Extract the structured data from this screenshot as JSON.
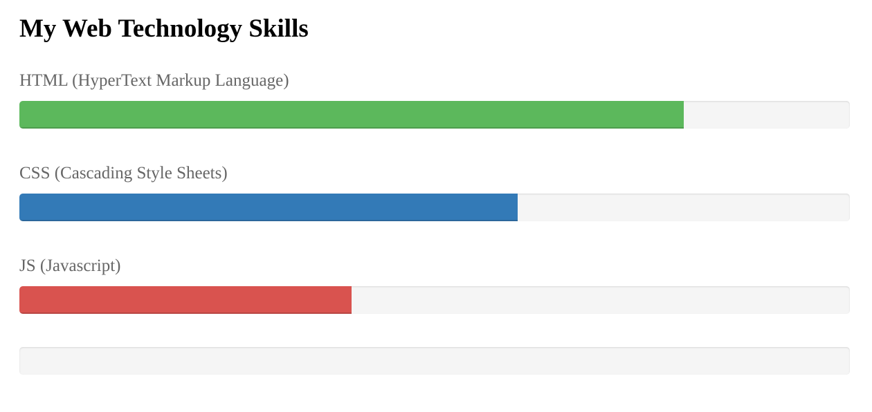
{
  "heading": "My Web Technology Skills",
  "skills": [
    {
      "label": "HTML (HyperText Markup Language)",
      "progress": 0.8,
      "color": "#5cb85c"
    },
    {
      "label": "CSS (Cascading Style Sheets)",
      "progress": 0.6,
      "color": "#337ab7"
    },
    {
      "label": "JS (Javascript)",
      "progress": 0.4,
      "color": "#d9534f"
    }
  ],
  "extra_bar": {
    "progress": 0
  }
}
